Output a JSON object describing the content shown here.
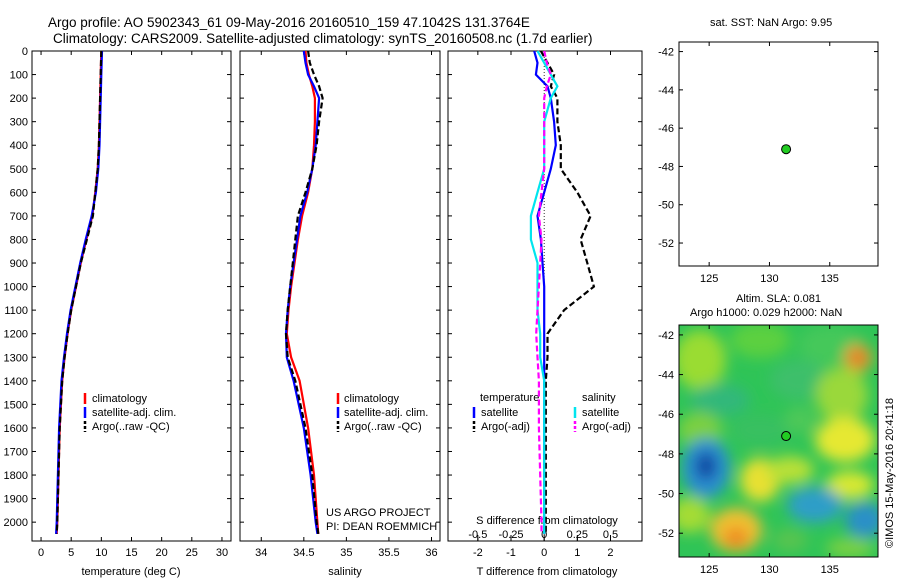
{
  "header": {
    "title_line1": "Argo profile: AO 5902343_61 09-May-2016 20160510_159 47.1042S 131.3764E",
    "title_line2": "Climatology: CARS2009. Satellite-adjusted climatology: synTS_20160508.nc (1.7d earlier)"
  },
  "sst_label": "sat. SST: NaN Argo: 9.95",
  "sla_label_1": "Altim. SLA: 0.081",
  "sla_label_2": "Argo h1000: 0.029 h2000: NaN",
  "watermark": "©IMOS 15-May-2016 20:41:18",
  "project_line1": "US ARGO PROJECT",
  "project_line2": "PI: DEAN ROEMMICH",
  "colors": {
    "climatology": "#ff0000",
    "satellite": "#0000ff",
    "argo": "#000000",
    "s_satellite": "#00e5ee",
    "s_argo": "#ff00ff",
    "marker": "#22cc22"
  },
  "chart_data": [
    {
      "id": "temperature",
      "type": "line",
      "xlabel": "temperature (deg C)",
      "xlim": [
        -1.5,
        31.5
      ],
      "xticks": [
        0,
        5,
        10,
        15,
        20,
        25,
        30
      ],
      "ylim": [
        2080,
        0
      ],
      "yticks": [
        0,
        100,
        200,
        300,
        400,
        500,
        600,
        700,
        800,
        900,
        1000,
        1100,
        1200,
        1300,
        1400,
        1500,
        1600,
        1700,
        1800,
        1900,
        2000
      ],
      "legend": [
        "climatology",
        "satellite-adj. clim.",
        "Argo(..raw -QC)"
      ],
      "depth": [
        0,
        100,
        200,
        300,
        400,
        500,
        600,
        700,
        800,
        900,
        1000,
        1100,
        1200,
        1300,
        1400,
        1600,
        1800,
        2000,
        2050
      ],
      "series": [
        {
          "name": "climatology",
          "values": [
            10.0,
            9.9,
            9.8,
            9.7,
            9.6,
            9.4,
            9.0,
            8.5,
            7.5,
            6.6,
            5.8,
            5.0,
            4.4,
            3.9,
            3.5,
            3.1,
            2.9,
            2.7,
            2.6
          ]
        },
        {
          "name": "satellite-adj. clim.",
          "values": [
            10.1,
            10.0,
            9.9,
            9.8,
            9.7,
            9.5,
            9.1,
            8.4,
            7.4,
            6.5,
            5.7,
            4.9,
            4.3,
            3.8,
            3.4,
            3.0,
            2.8,
            2.6,
            2.5
          ]
        },
        {
          "name": "Argo(..raw -QC)",
          "values": [
            10.0,
            9.9,
            9.8,
            9.7,
            9.6,
            9.4,
            9.0,
            8.6,
            7.6,
            6.6,
            5.8,
            5.0,
            4.4,
            3.9,
            3.5,
            3.1,
            2.9,
            2.7,
            2.6
          ]
        }
      ]
    },
    {
      "id": "salinity",
      "type": "line",
      "xlabel": "salinity",
      "xlim": [
        33.75,
        36.1
      ],
      "xticks": [
        34,
        34.5,
        35,
        35.5,
        36
      ],
      "ylim": [
        2080,
        0
      ],
      "legend": [
        "climatology",
        "satellite-adj. clim.",
        "Argo(..raw -QC)"
      ],
      "depth": [
        0,
        50,
        100,
        150,
        200,
        300,
        400,
        500,
        600,
        700,
        800,
        900,
        1000,
        1100,
        1200,
        1300,
        1400,
        1600,
        1800,
        2000,
        2050
      ],
      "series": [
        {
          "name": "climatology",
          "values": [
            34.52,
            34.53,
            34.56,
            34.6,
            34.63,
            34.63,
            34.62,
            34.6,
            34.55,
            34.48,
            34.43,
            34.39,
            34.35,
            34.32,
            34.3,
            34.35,
            34.45,
            34.55,
            34.62,
            34.66,
            34.67
          ]
        },
        {
          "name": "satellite-adj. clim.",
          "values": [
            34.5,
            34.52,
            34.55,
            34.62,
            34.68,
            34.66,
            34.64,
            34.6,
            34.54,
            34.46,
            34.42,
            34.38,
            34.34,
            34.31,
            34.29,
            34.3,
            34.38,
            34.5,
            34.58,
            34.64,
            34.66
          ]
        },
        {
          "name": "Argo(..raw -QC)",
          "values": [
            34.55,
            34.57,
            34.62,
            34.68,
            34.72,
            34.68,
            34.65,
            34.6,
            34.52,
            34.43,
            34.4,
            34.37,
            34.34,
            34.31,
            34.29,
            34.31,
            34.4,
            34.52,
            34.6,
            34.65,
            34.67
          ]
        }
      ]
    },
    {
      "id": "difference",
      "type": "line",
      "xlabel": "T difference from climatology",
      "xlabel_top": "S difference from climatology",
      "xlim": [
        -2.9,
        2.95
      ],
      "xticks": [
        -2,
        -1,
        0,
        1,
        2
      ],
      "xticks_top": [
        -0.5,
        -0.25,
        0,
        0.25,
        0.5
      ],
      "ylim": [
        2080,
        0
      ],
      "legend_title_t": "temperature",
      "legend_title_s": "salinity",
      "legend_t": [
        "satellite",
        "Argo(-adj)"
      ],
      "legend_s": [
        "satellite",
        "Argo(-adj)"
      ],
      "depth": [
        0,
        50,
        100,
        150,
        200,
        300,
        400,
        500,
        600,
        700,
        800,
        900,
        1000,
        1100,
        1200,
        1300,
        1400,
        1600,
        1800,
        2000,
        2050
      ],
      "series": [
        {
          "name": "T satellite",
          "values": [
            -0.3,
            -0.2,
            -0.25,
            0.1,
            0.2,
            0.3,
            0.35,
            0.2,
            0.0,
            -0.2,
            -0.1,
            -0.05,
            0.0,
            0.0,
            0.0,
            0.0,
            0.0,
            0.0,
            0.0,
            0.0,
            0.0
          ]
        },
        {
          "name": "T Argo(-adj)",
          "values": [
            -0.1,
            0.1,
            0.3,
            0.2,
            0.4,
            0.4,
            0.5,
            0.5,
            1.0,
            1.4,
            1.1,
            1.3,
            1.5,
            0.6,
            0.1,
            0.1,
            0.05,
            0.05,
            0.05,
            0.05,
            0.05
          ]
        },
        {
          "name": "S satellite",
          "values": [
            -0.05,
            0.0,
            0.05,
            0.1,
            0.05,
            0.0,
            0.0,
            0.0,
            -0.05,
            -0.1,
            -0.1,
            -0.05,
            -0.05,
            -0.05,
            -0.03,
            -0.03,
            0.0,
            0.0,
            0.0,
            0.0,
            0.0
          ]
        },
        {
          "name": "S Argo(-adj)",
          "values": [
            0.0,
            0.02,
            0.05,
            0.02,
            0.0,
            0.0,
            0.0,
            0.0,
            -0.02,
            -0.04,
            -0.02,
            -0.03,
            -0.04,
            -0.05,
            -0.06,
            -0.05,
            -0.04,
            -0.04,
            -0.03,
            -0.02,
            -0.02
          ]
        }
      ]
    },
    {
      "id": "sst_map",
      "type": "scatter",
      "xlim": [
        122.5,
        139
      ],
      "xticks": [
        125,
        130,
        135
      ],
      "ylim": [
        -53.2,
        -41.5
      ],
      "yticks": [
        -42,
        -44,
        -46,
        -48,
        -50,
        -52
      ],
      "points": [
        {
          "x": 131.38,
          "y": -47.1
        }
      ]
    },
    {
      "id": "sla_map",
      "type": "heatmap",
      "xlim": [
        122.5,
        139
      ],
      "xticks": [
        125,
        130,
        135
      ],
      "ylim": [
        -53.2,
        -41.5
      ],
      "yticks": [
        -42,
        -44,
        -46,
        -48,
        -50,
        -52
      ],
      "points": [
        {
          "x": 131.38,
          "y": -47.1
        }
      ]
    }
  ]
}
